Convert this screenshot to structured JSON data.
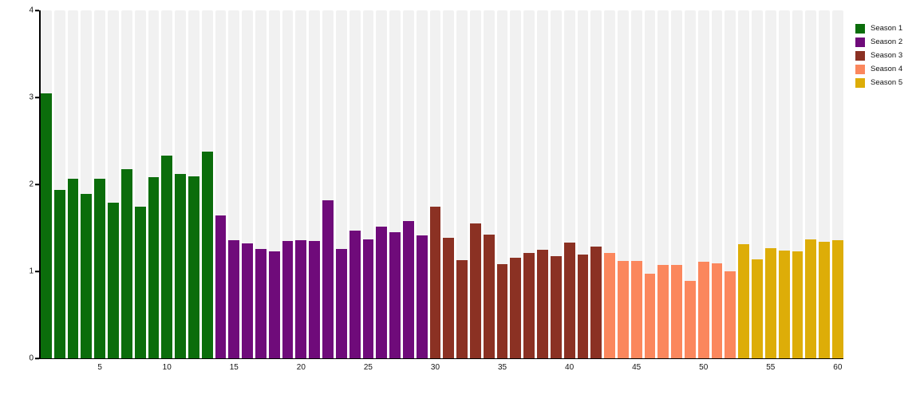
{
  "chart_data": {
    "type": "bar",
    "title": "",
    "xlabel": "",
    "ylabel": "",
    "ylim": [
      0,
      4
    ],
    "yticks": [
      0,
      1,
      2,
      3,
      4
    ],
    "xtick_interval": 5,
    "grid": false,
    "legend_position": "top-right",
    "plot_band_color": "#f1f1f1",
    "axis_color": "#000000",
    "categories_note": "x axis = episode number 1 to 60",
    "series": [
      {
        "name": "Season 1",
        "color": "#0b6d0b",
        "start_episode": 1,
        "values": [
          3.05,
          1.94,
          2.06,
          1.89,
          2.06,
          1.79,
          2.17,
          1.74,
          2.08,
          2.33,
          2.12,
          2.09,
          2.38
        ]
      },
      {
        "name": "Season 2",
        "color": "#6f0b7a",
        "start_episode": 14,
        "values": [
          1.64,
          1.36,
          1.32,
          1.26,
          1.23,
          1.35,
          1.36,
          1.35,
          1.82,
          1.26,
          1.47,
          1.37,
          1.51,
          1.45,
          1.58,
          1.41
        ]
      },
      {
        "name": "Season 3",
        "color": "#8b3123",
        "start_episode": 30,
        "values": [
          1.74,
          1.39,
          1.13,
          1.55,
          1.42,
          1.08,
          1.16,
          1.21,
          1.25,
          1.17,
          1.33,
          1.19,
          1.28
        ]
      },
      {
        "name": "Season 4",
        "color": "#fb875d",
        "start_episode": 43,
        "values": [
          1.21,
          1.12,
          1.12,
          0.97,
          1.07,
          1.07,
          0.89,
          1.11,
          1.09,
          1.0
        ]
      },
      {
        "name": "Season 5",
        "color": "#ddad08",
        "start_episode": 53,
        "values": [
          1.31,
          1.14,
          1.27,
          1.24,
          1.23,
          1.37,
          1.34,
          1.36
        ]
      }
    ]
  }
}
